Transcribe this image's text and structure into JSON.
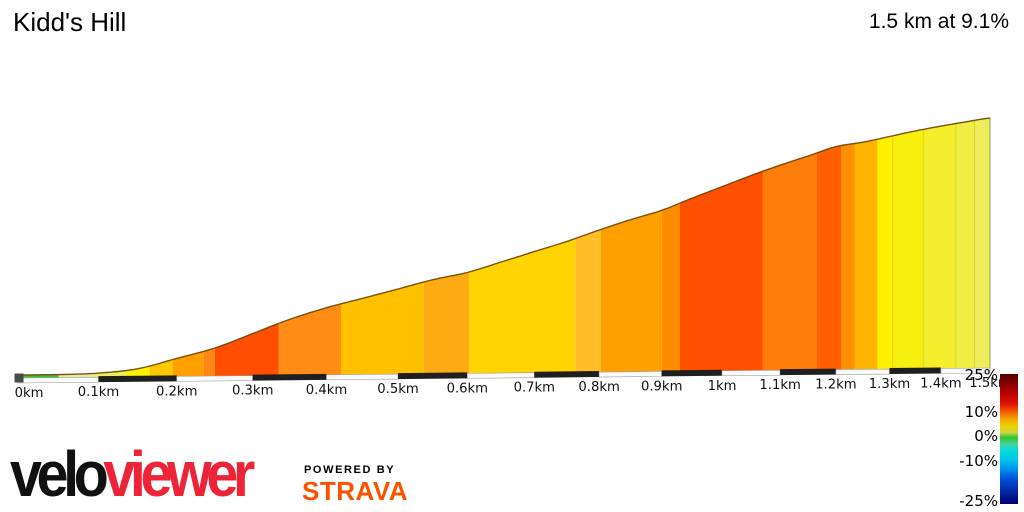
{
  "header": {
    "title": "Kidd's Hill",
    "summary": "1.5 km at 9.1%"
  },
  "chart_data": {
    "type": "area",
    "title": "Kidd's Hill",
    "subtitle": "1.5 km at 9.1%",
    "x_unit": "km",
    "total_distance_km": 1.5,
    "average_gradient": "9.1%",
    "total_elevation_gain_m": 137,
    "x_ticks": [
      "0km",
      "0.1km",
      "0.2km",
      "0.3km",
      "0.4km",
      "0.5km",
      "0.6km",
      "0.7km",
      "0.8km",
      "0.9km",
      "1km",
      "1.1km",
      "1.2km",
      "1.3km",
      "1.4km",
      "1.5km"
    ],
    "profile_points": [
      [
        0.0,
        0
      ],
      [
        0.05,
        0
      ],
      [
        0.1,
        0.6
      ],
      [
        0.15,
        2.8
      ],
      [
        0.2,
        8.3
      ],
      [
        0.25,
        13.9
      ],
      [
        0.3,
        21.7
      ],
      [
        0.35,
        29.4
      ],
      [
        0.4,
        35.6
      ],
      [
        0.45,
        40.6
      ],
      [
        0.5,
        45.6
      ],
      [
        0.55,
        50.6
      ],
      [
        0.6,
        54.4
      ],
      [
        0.65,
        60.0
      ],
      [
        0.7,
        65.6
      ],
      [
        0.75,
        71.1
      ],
      [
        0.8,
        77.2
      ],
      [
        0.85,
        82.8
      ],
      [
        0.9,
        87.8
      ],
      [
        0.95,
        94.4
      ],
      [
        1.0,
        100.6
      ],
      [
        1.05,
        106.7
      ],
      [
        1.1,
        112.2
      ],
      [
        1.15,
        117.2
      ],
      [
        1.2,
        122.2
      ],
      [
        1.25,
        124.5
      ],
      [
        1.3,
        127.5
      ],
      [
        1.35,
        130.5
      ],
      [
        1.4,
        133.0
      ],
      [
        1.45,
        135.2
      ],
      [
        1.5,
        137.2
      ]
    ],
    "segments": [
      {
        "from": 0.0,
        "to": 0.05,
        "color": "#3CBE3C"
      },
      {
        "from": 0.05,
        "to": 0.095,
        "color": "#E2EB9E"
      },
      {
        "from": 0.095,
        "to": 0.135,
        "color": "#EDF05C"
      },
      {
        "from": 0.135,
        "to": 0.165,
        "color": "#FFF200"
      },
      {
        "from": 0.165,
        "to": 0.195,
        "color": "#FFC800"
      },
      {
        "from": 0.195,
        "to": 0.235,
        "color": "#FFA000"
      },
      {
        "from": 0.235,
        "to": 0.25,
        "color": "#FF8614"
      },
      {
        "from": 0.25,
        "to": 0.335,
        "color": "#FF4E00"
      },
      {
        "from": 0.335,
        "to": 0.42,
        "color": "#FF8C14"
      },
      {
        "from": 0.42,
        "to": 0.537,
        "color": "#FFC000"
      },
      {
        "from": 0.537,
        "to": 0.603,
        "color": "#FFAC14"
      },
      {
        "from": 0.603,
        "to": 0.763,
        "color": "#FFD400"
      },
      {
        "from": 0.763,
        "to": 0.803,
        "color": "#FFBE28"
      },
      {
        "from": 0.803,
        "to": 0.9,
        "color": "#FFA000"
      },
      {
        "from": 0.9,
        "to": 0.93,
        "color": "#FF8C00"
      },
      {
        "from": 0.93,
        "to": 1.07,
        "color": "#FF5000"
      },
      {
        "from": 1.07,
        "to": 1.165,
        "color": "#FF7D0A"
      },
      {
        "from": 1.165,
        "to": 1.21,
        "color": "#FF5F00"
      },
      {
        "from": 1.21,
        "to": 1.235,
        "color": "#FF9000"
      },
      {
        "from": 1.235,
        "to": 1.277,
        "color": "#FFB400"
      },
      {
        "from": 1.277,
        "to": 1.306,
        "color": "#FFF000"
      },
      {
        "from": 1.306,
        "to": 1.366,
        "color": "#F7EF0E",
        "div": true
      },
      {
        "from": 1.366,
        "to": 1.43,
        "color": "#F4EE2C",
        "div": true
      },
      {
        "from": 1.43,
        "to": 1.468,
        "color": "#F0ED44",
        "div": true
      },
      {
        "from": 1.468,
        "to": 1.5,
        "color": "#EDEC5C",
        "div": true
      }
    ],
    "gradient_legend": {
      "labels": [
        "25%",
        "10%",
        "0%",
        "-10%",
        "-25%"
      ],
      "max": "25%",
      "min": "-25%"
    }
  },
  "branding": {
    "logo_black": "velo",
    "logo_red": "viewer",
    "powered_by": "POWERED BY",
    "strava": "STRAVA",
    "veloviewer_red": "#ED2437",
    "strava_orange": "#FC5200"
  }
}
